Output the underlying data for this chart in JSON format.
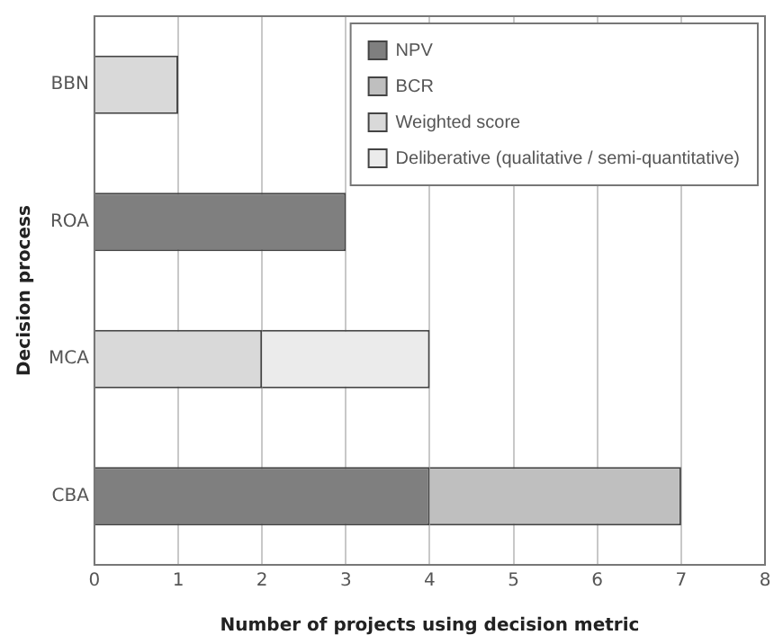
{
  "chart_data": {
    "type": "bar",
    "orientation": "horizontal",
    "stacked": true,
    "categories": [
      "BBN",
      "ROA",
      "MCA",
      "CBA"
    ],
    "series": [
      {
        "name": "NPV",
        "color": "#7f7f7f",
        "values": [
          null,
          3,
          null,
          4
        ]
      },
      {
        "name": "BCR",
        "color": "#bfbfbf",
        "values": [
          null,
          null,
          null,
          3
        ]
      },
      {
        "name": "Weighted score",
        "color": "#d9d9d9",
        "values": [
          1,
          null,
          2,
          null
        ]
      },
      {
        "name": "Deliberative (qualitative / semi-quantitative)",
        "color": "#ebebeb",
        "values": [
          null,
          null,
          2,
          null
        ]
      }
    ],
    "xlim": [
      0,
      8
    ],
    "xticks": [
      0,
      1,
      2,
      3,
      4,
      5,
      6,
      7,
      8
    ],
    "xlabel": "Number of projects using decision metric",
    "ylabel": "Decision process",
    "grid": "x",
    "legend": "top right"
  }
}
